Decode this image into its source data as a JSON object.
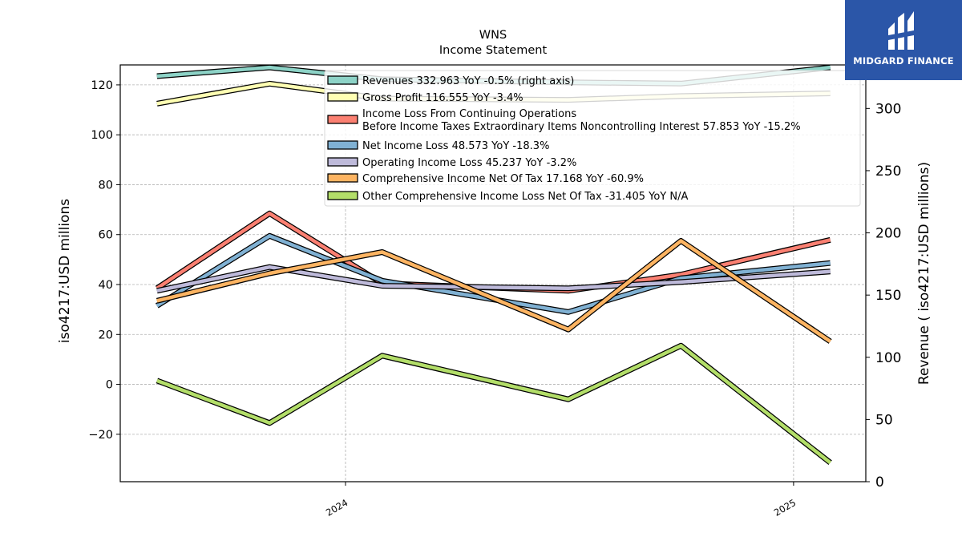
{
  "brand": {
    "name": "MIDGARD FINANCE",
    "logo_icon": "midgard-logo-icon",
    "bg_color": "#2b56a8"
  },
  "chart_data": {
    "type": "line",
    "title": "WNS",
    "subtitle": "Income Statement",
    "ylabel": "iso4217:USD  millions",
    "ylabel_right": "Revenue ( iso4217:USD  millions)",
    "ylim": [
      -39,
      128
    ],
    "ylim_right": [
      0,
      335
    ],
    "yticks": [
      -20,
      0,
      20,
      40,
      60,
      80,
      100,
      120
    ],
    "yticks_right": [
      0,
      50,
      100,
      150,
      200,
      250,
      300
    ],
    "x": [
      "2023-07",
      "2023-10",
      "2024-01",
      "2024-04",
      "2024-07",
      "2024-10",
      "2025-01"
    ],
    "xtick_labels": [
      "2024",
      "2025"
    ],
    "grid": true,
    "legend_position": "top-center",
    "series": [
      {
        "name": "Revenues",
        "legend": "Revenues  332.963 YoY -0.5% (right axis)",
        "color": "#8dd3c7",
        "axis": "right",
        "points": [
          [
            "2023-07-31",
            326.0
          ],
          [
            "2023-10-31",
            333.0
          ],
          [
            "2024-01-31",
            323.5
          ],
          [
            "2024-07-01",
            321.0
          ],
          [
            "2024-10-01",
            320.0
          ],
          [
            "2025-01-31",
            333.0
          ]
        ]
      },
      {
        "name": "Gross Profit",
        "legend": "Gross Profit  116.555 YoY -3.4%",
        "color": "#ffffb3",
        "axis": "left",
        "points": [
          [
            "2023-07-31",
            112.5
          ],
          [
            "2023-10-31",
            120.5
          ],
          [
            "2024-01-31",
            114.5
          ],
          [
            "2024-07-01",
            114.0
          ],
          [
            "2024-10-01",
            115.5
          ],
          [
            "2025-01-31",
            116.6
          ]
        ]
      },
      {
        "name": "Income Loss From Continuing Operations Before Income Taxes Extraordinary Items Noncontrolling Interest",
        "legend_lines": [
          "Income Loss From Continuing Operations",
          "Before Income Taxes Extraordinary Items Noncontrolling Interest  57.853 YoY -15.2%"
        ],
        "color": "#fb8072",
        "axis": "left",
        "points": [
          [
            "2023-07-31",
            38.5
          ],
          [
            "2023-10-31",
            68.5
          ],
          [
            "2024-01-31",
            40.5
          ],
          [
            "2024-07-01",
            37.5
          ],
          [
            "2024-10-01",
            44.0
          ],
          [
            "2025-01-31",
            57.9
          ]
        ]
      },
      {
        "name": "Net Income Loss",
        "legend": "Net Income Loss  48.573 YoY -18.3%",
        "color": "#80b1d3",
        "axis": "left",
        "points": [
          [
            "2023-07-31",
            31.5
          ],
          [
            "2023-10-31",
            59.5
          ],
          [
            "2024-01-31",
            41.5
          ],
          [
            "2024-07-01",
            29.0
          ],
          [
            "2024-10-01",
            42.5
          ],
          [
            "2025-01-31",
            48.6
          ]
        ]
      },
      {
        "name": "Operating Income Loss",
        "legend": "Operating Income Loss  45.237 YoY -3.2%",
        "color": "#bebada",
        "axis": "left",
        "points": [
          [
            "2023-07-31",
            37.5
          ],
          [
            "2023-10-31",
            47.0
          ],
          [
            "2024-01-31",
            39.5
          ],
          [
            "2024-07-01",
            38.5
          ],
          [
            "2024-10-01",
            41.0
          ],
          [
            "2025-01-31",
            45.2
          ]
        ]
      },
      {
        "name": "Comprehensive Income Net Of Tax",
        "legend": "Comprehensive Income Net Of Tax  17.168 YoY -60.9%",
        "color": "#fdb462",
        "axis": "left",
        "points": [
          [
            "2023-07-31",
            33.5
          ],
          [
            "2023-10-31",
            44.5
          ],
          [
            "2024-01-31",
            53.0
          ],
          [
            "2024-07-01",
            22.0
          ],
          [
            "2024-10-01",
            57.5
          ],
          [
            "2025-01-31",
            17.2
          ]
        ]
      },
      {
        "name": "Other Comprehensive Income Loss Net Of Tax",
        "legend": "Other Comprehensive Income Loss Net Of Tax  -31.405 YoY N/A",
        "color": "#b3de69",
        "axis": "left",
        "points": [
          [
            "2023-07-31",
            1.5
          ],
          [
            "2023-10-31",
            -15.5
          ],
          [
            "2024-01-31",
            11.5
          ],
          [
            "2024-07-01",
            -6.0
          ],
          [
            "2024-10-01",
            15.5
          ],
          [
            "2025-01-31",
            -31.4
          ]
        ]
      }
    ]
  }
}
